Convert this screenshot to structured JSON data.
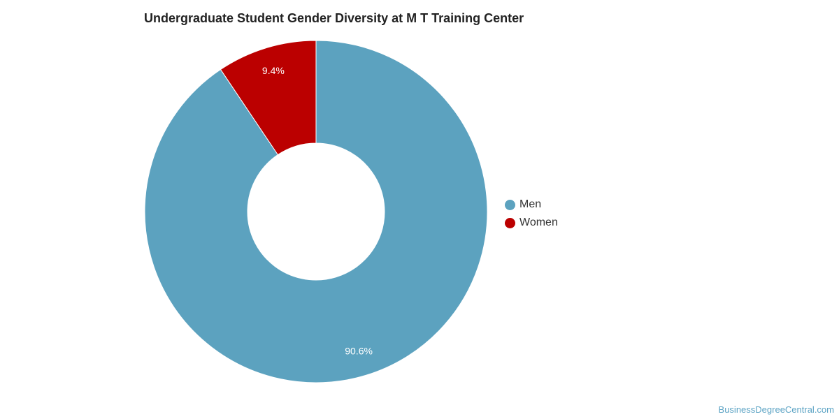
{
  "chart_data": {
    "type": "pie",
    "donut": true,
    "title": "Undergraduate Student Gender Diversity at M T Training Center",
    "slices": [
      {
        "label": "Men",
        "value": 90.6,
        "display": "90.6%",
        "color": "#5ca2bf"
      },
      {
        "label": "Women",
        "value": 9.4,
        "display": "9.4%",
        "color": "#bb0000"
      }
    ],
    "legend_position": "right"
  },
  "watermark": "BusinessDegreeCentral.com"
}
